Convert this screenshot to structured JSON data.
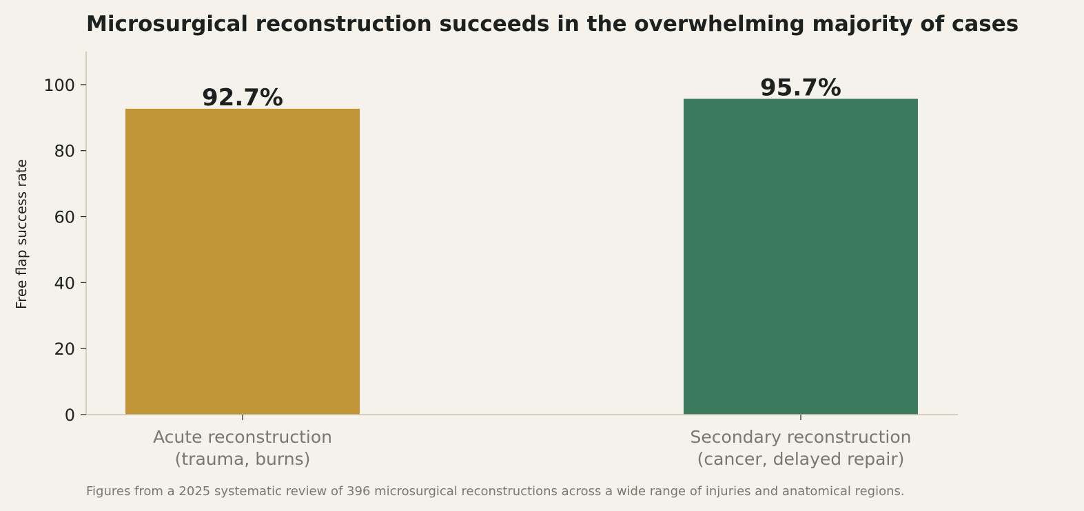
{
  "chart_data": {
    "type": "bar",
    "title": "Microsurgical reconstruction succeeds in the overwhelming majority of cases",
    "ylabel": "Free flap success rate",
    "xlabel": "",
    "categories": [
      [
        "Acute reconstruction",
        "(trauma, burns)"
      ],
      [
        "Secondary reconstruction",
        "(cancer, delayed repair)"
      ]
    ],
    "values": [
      92.7,
      95.7
    ],
    "value_labels": [
      "92.7%",
      "95.7%"
    ],
    "colors": [
      "#c29638",
      "#3b7a5d"
    ],
    "ylim": [
      0,
      110
    ],
    "yticks": [
      0,
      20,
      40,
      60,
      80,
      100
    ],
    "grid": false,
    "footnote": "Figures from a 2025 systematic review of 396 microsurgical reconstructions across a wide range of injuries and anatomical regions."
  },
  "theme": {
    "background": "#f5f2ec",
    "axis_color": "#c9c4ae",
    "text_dark": "#1c201e",
    "text_muted": "#77786f"
  }
}
